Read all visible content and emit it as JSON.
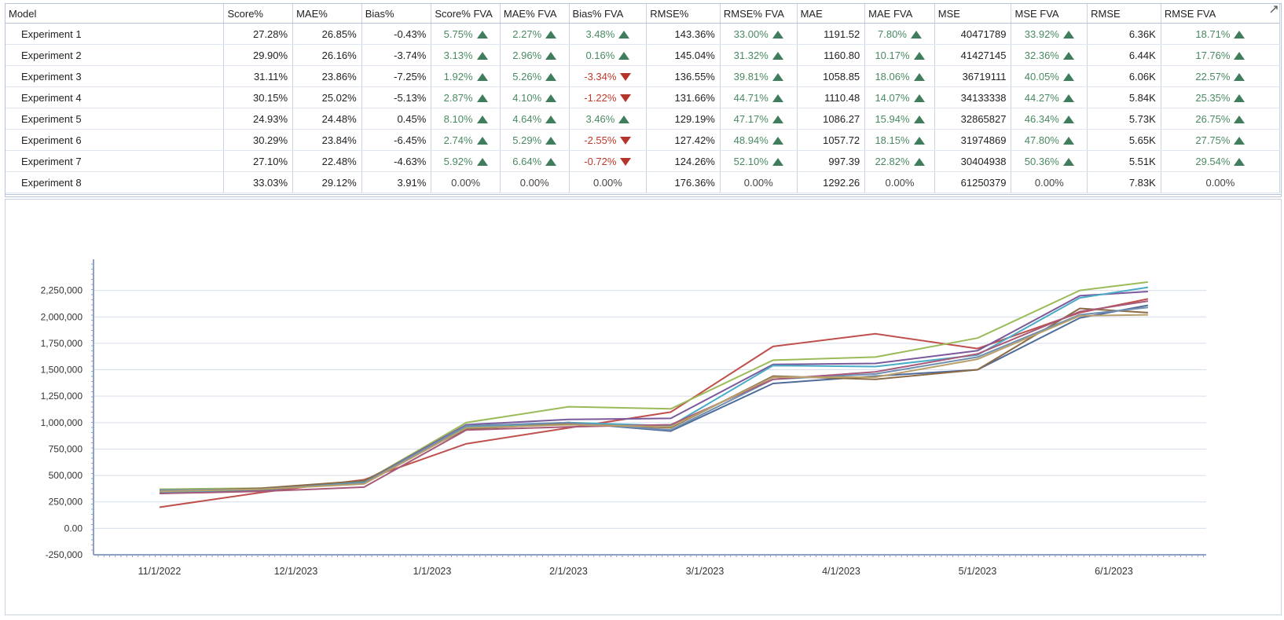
{
  "table": {
    "columns": [
      "Model",
      "Score%",
      "MAE%",
      "Bias%",
      "Score% FVA",
      "MAE% FVA",
      "Bias% FVA",
      "RMSE%",
      "RMSE% FVA",
      "MAE",
      "MAE FVA",
      "MSE",
      "MSE FVA",
      "RMSE",
      "RMSE FVA"
    ],
    "rows": [
      {
        "model": "Experiment 1",
        "score": "27.28%",
        "mae_pct": "26.85%",
        "bias": "-0.43%",
        "score_fva": "5.75%",
        "score_fva_dir": "up",
        "mae_pct_fva": "2.27%",
        "mae_pct_fva_dir": "up",
        "bias_fva": "3.48%",
        "bias_fva_dir": "up",
        "rmse_pct": "143.36%",
        "rmse_pct_fva": "33.00%",
        "rmse_pct_fva_dir": "up",
        "mae": "1191.52",
        "mae_fva": "7.80%",
        "mae_fva_dir": "up",
        "mse": "40471789",
        "mse_fva": "33.92%",
        "mse_fva_dir": "up",
        "rmse": "6.36K",
        "rmse_fva": "18.71%",
        "rmse_fva_dir": "up"
      },
      {
        "model": "Experiment 2",
        "score": "29.90%",
        "mae_pct": "26.16%",
        "bias": "-3.74%",
        "score_fva": "3.13%",
        "score_fva_dir": "up",
        "mae_pct_fva": "2.96%",
        "mae_pct_fva_dir": "up",
        "bias_fva": "0.16%",
        "bias_fva_dir": "up",
        "rmse_pct": "145.04%",
        "rmse_pct_fva": "31.32%",
        "rmse_pct_fva_dir": "up",
        "mae": "1160.80",
        "mae_fva": "10.17%",
        "mae_fva_dir": "up",
        "mse": "41427145",
        "mse_fva": "32.36%",
        "mse_fva_dir": "up",
        "rmse": "6.44K",
        "rmse_fva": "17.76%",
        "rmse_fva_dir": "up"
      },
      {
        "model": "Experiment 3",
        "score": "31.11%",
        "mae_pct": "23.86%",
        "bias": "-7.25%",
        "score_fva": "1.92%",
        "score_fva_dir": "up",
        "mae_pct_fva": "5.26%",
        "mae_pct_fva_dir": "up",
        "bias_fva": "-3.34%",
        "bias_fva_dir": "down",
        "rmse_pct": "136.55%",
        "rmse_pct_fva": "39.81%",
        "rmse_pct_fva_dir": "up",
        "mae": "1058.85",
        "mae_fva": "18.06%",
        "mae_fva_dir": "up",
        "mse": "36719111",
        "mse_fva": "40.05%",
        "mse_fva_dir": "up",
        "rmse": "6.06K",
        "rmse_fva": "22.57%",
        "rmse_fva_dir": "up"
      },
      {
        "model": "Experiment 4",
        "score": "30.15%",
        "mae_pct": "25.02%",
        "bias": "-5.13%",
        "score_fva": "2.87%",
        "score_fva_dir": "up",
        "mae_pct_fva": "4.10%",
        "mae_pct_fva_dir": "up",
        "bias_fva": "-1.22%",
        "bias_fva_dir": "down",
        "rmse_pct": "131.66%",
        "rmse_pct_fva": "44.71%",
        "rmse_pct_fva_dir": "up",
        "mae": "1110.48",
        "mae_fva": "14.07%",
        "mae_fva_dir": "up",
        "mse": "34133338",
        "mse_fva": "44.27%",
        "mse_fva_dir": "up",
        "rmse": "5.84K",
        "rmse_fva": "25.35%",
        "rmse_fva_dir": "up"
      },
      {
        "model": "Experiment 5",
        "score": "24.93%",
        "mae_pct": "24.48%",
        "bias": "0.45%",
        "score_fva": "8.10%",
        "score_fva_dir": "up",
        "mae_pct_fva": "4.64%",
        "mae_pct_fva_dir": "up",
        "bias_fva": "3.46%",
        "bias_fva_dir": "up",
        "rmse_pct": "129.19%",
        "rmse_pct_fva": "47.17%",
        "rmse_pct_fva_dir": "up",
        "mae": "1086.27",
        "mae_fva": "15.94%",
        "mae_fva_dir": "up",
        "mse": "32865827",
        "mse_fva": "46.34%",
        "mse_fva_dir": "up",
        "rmse": "5.73K",
        "rmse_fva": "26.75%",
        "rmse_fva_dir": "up"
      },
      {
        "model": "Experiment 6",
        "score": "30.29%",
        "mae_pct": "23.84%",
        "bias": "-6.45%",
        "score_fva": "2.74%",
        "score_fva_dir": "up",
        "mae_pct_fva": "5.29%",
        "mae_pct_fva_dir": "up",
        "bias_fva": "-2.55%",
        "bias_fva_dir": "down",
        "rmse_pct": "127.42%",
        "rmse_pct_fva": "48.94%",
        "rmse_pct_fva_dir": "up",
        "mae": "1057.72",
        "mae_fva": "18.15%",
        "mae_fva_dir": "up",
        "mse": "31974869",
        "mse_fva": "47.80%",
        "mse_fva_dir": "up",
        "rmse": "5.65K",
        "rmse_fva": "27.75%",
        "rmse_fva_dir": "up"
      },
      {
        "model": "Experiment 7",
        "score": "27.10%",
        "mae_pct": "22.48%",
        "bias": "-4.63%",
        "score_fva": "5.92%",
        "score_fva_dir": "up",
        "mae_pct_fva": "6.64%",
        "mae_pct_fva_dir": "up",
        "bias_fva": "-0.72%",
        "bias_fva_dir": "down",
        "rmse_pct": "124.26%",
        "rmse_pct_fva": "52.10%",
        "rmse_pct_fva_dir": "up",
        "mae": "997.39",
        "mae_fva": "22.82%",
        "mae_fva_dir": "up",
        "mse": "30404938",
        "mse_fva": "50.36%",
        "mse_fva_dir": "up",
        "rmse": "5.51K",
        "rmse_fva": "29.54%",
        "rmse_fva_dir": "up"
      },
      {
        "model": "Experiment 8",
        "score": "33.03%",
        "mae_pct": "29.12%",
        "bias": "3.91%",
        "score_fva": "0.00%",
        "score_fva_dir": "none",
        "mae_pct_fva": "0.00%",
        "mae_pct_fva_dir": "none",
        "bias_fva": "0.00%",
        "bias_fva_dir": "none",
        "rmse_pct": "176.36%",
        "rmse_pct_fva": "0.00%",
        "rmse_pct_fva_dir": "none",
        "mae": "1292.26",
        "mae_fva": "0.00%",
        "mae_fva_dir": "none",
        "mse": "61250379",
        "mse_fva": "0.00%",
        "mse_fva_dir": "none",
        "rmse": "7.83K",
        "rmse_fva": "0.00%",
        "rmse_fva_dir": "none"
      }
    ]
  },
  "colors": {
    "up": "#3f7d5c",
    "down": "#b5352a",
    "grid": "#d6deec",
    "axis": "#8ea2c8"
  },
  "chart_data": {
    "type": "line",
    "title": "",
    "xlabel": "",
    "ylabel": "",
    "ylim": [
      -250000,
      2500000
    ],
    "yticks": [
      -250000,
      0,
      250000,
      500000,
      750000,
      1000000,
      1250000,
      1500000,
      1750000,
      2000000,
      2250000
    ],
    "ytick_labels": [
      "-250,000",
      "0.00",
      "250,000",
      "500,000",
      "750,000",
      "1,000,000",
      "1,250,000",
      "1,500,000",
      "1,750,000",
      "2,000,000",
      "2,250,000"
    ],
    "x_tick_labels": [
      "11/1/2022",
      "12/1/2023",
      "1/1/2023",
      "2/1/2023",
      "3/1/2023",
      "4/1/2023",
      "5/1/2023",
      "6/1/2023"
    ],
    "x_points": [
      0,
      0.75,
      1.5,
      2.25,
      3.0,
      3.75,
      4.5,
      5.25,
      6.0,
      6.75,
      7.25
    ],
    "grid": true,
    "legend": "none",
    "series": [
      {
        "color": "#c0504d",
        "values": [
          200000,
          340000,
          460000,
          800000,
          950000,
          1100000,
          1720000,
          1840000,
          1700000,
          2040000,
          2170000
        ]
      },
      {
        "color": "#9bbb59",
        "values": [
          370000,
          380000,
          440000,
          1000000,
          1150000,
          1130000,
          1590000,
          1620000,
          1800000,
          2250000,
          2330000
        ]
      },
      {
        "color": "#4f6b9a",
        "values": [
          330000,
          360000,
          440000,
          950000,
          1000000,
          920000,
          1370000,
          1440000,
          1500000,
          1990000,
          2110000
        ]
      },
      {
        "color": "#7b5a9c",
        "values": [
          360000,
          370000,
          440000,
          980000,
          1030000,
          1040000,
          1550000,
          1560000,
          1680000,
          2200000,
          2240000
        ]
      },
      {
        "color": "#4aacc6",
        "values": [
          340000,
          370000,
          440000,
          960000,
          1000000,
          970000,
          1540000,
          1530000,
          1640000,
          2180000,
          2280000
        ]
      },
      {
        "color": "#8b6b45",
        "values": [
          350000,
          380000,
          450000,
          940000,
          990000,
          950000,
          1440000,
          1410000,
          1500000,
          2080000,
          2040000
        ]
      },
      {
        "color": "#6f8fb0",
        "values": [
          360000,
          370000,
          430000,
          970000,
          1000000,
          930000,
          1410000,
          1460000,
          1620000,
          2020000,
          2090000
        ]
      },
      {
        "color": "#a85a7a",
        "values": [
          330000,
          350000,
          390000,
          930000,
          960000,
          980000,
          1410000,
          1480000,
          1650000,
          2050000,
          2150000
        ]
      },
      {
        "color": "#b8a06a",
        "values": [
          350000,
          370000,
          420000,
          950000,
          980000,
          960000,
          1430000,
          1430000,
          1600000,
          2010000,
          2020000
        ]
      }
    ]
  }
}
